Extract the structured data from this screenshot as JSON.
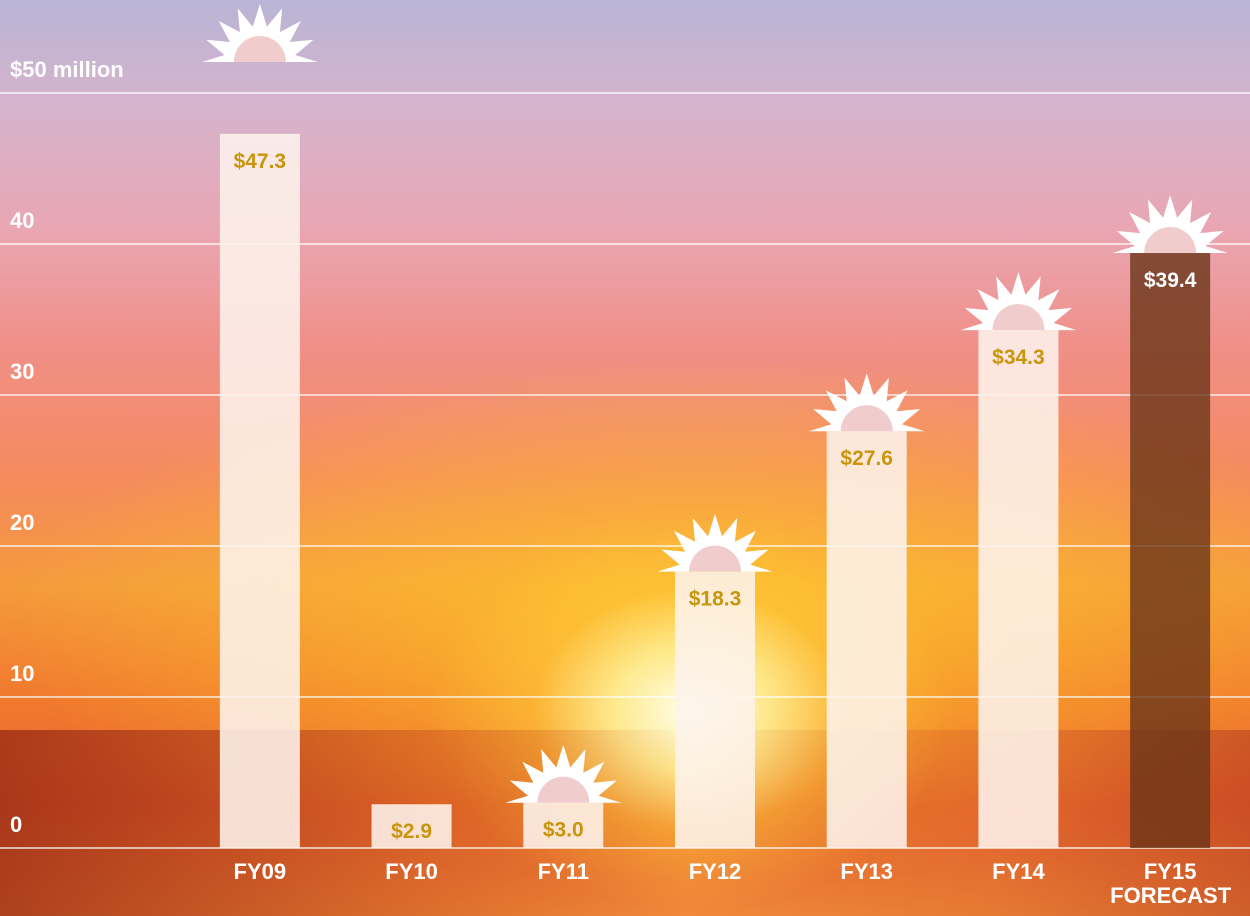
{
  "chart_data": {
    "type": "bar",
    "categories": [
      "FY09",
      "FY10",
      "FY11",
      "FY12",
      "FY13",
      "FY14",
      "FY15 FORECAST"
    ],
    "values": [
      47.3,
      2.9,
      3.0,
      18.3,
      27.6,
      34.3,
      39.4
    ],
    "value_labels": [
      "$47.3",
      "$2.9",
      "$3.0",
      "$18.3",
      "$27.6",
      "$34.3",
      "$39.4"
    ],
    "colors": [
      "#fdf3ec",
      "#fdf3ec",
      "#fdf3ec",
      "#fdf3ec",
      "#fdf3ec",
      "#fdf3ec",
      "#6a3418"
    ],
    "label_colors": [
      "#c8960c",
      "#c8960c",
      "#c8960c",
      "#c8960c",
      "#c8960c",
      "#c8960c",
      "#ffffff"
    ],
    "ylim": [
      0,
      50
    ],
    "yticks": [
      0,
      10,
      20,
      30,
      40,
      {
        "value": 50,
        "label": "$50 million"
      }
    ],
    "grid": true
  }
}
